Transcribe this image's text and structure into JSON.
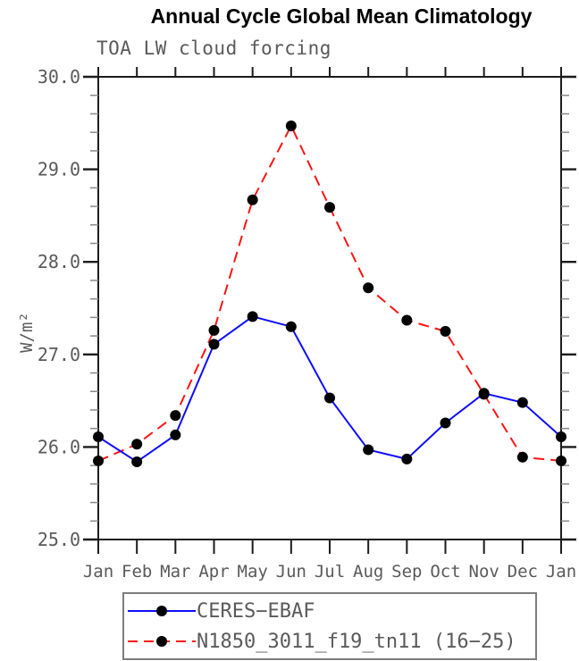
{
  "chart_data": {
    "type": "line",
    "title": "Annual Cycle Global Mean Climatology",
    "subtitle": "TOA LW cloud forcing",
    "ylabel": "W/m²",
    "xlabel": "",
    "categories": [
      "Jan",
      "Feb",
      "Mar",
      "Apr",
      "May",
      "Jun",
      "Jul",
      "Aug",
      "Sep",
      "Oct",
      "Nov",
      "Dec",
      "Jan"
    ],
    "ylim": [
      25.0,
      30.0
    ],
    "ytick_step": 1.0,
    "ytick_minor_step": 0.2,
    "ytick_labels": [
      "30.0",
      "29.0",
      "28.0",
      "27.0",
      "26.0",
      "25.0"
    ],
    "grid": false,
    "legend_position": "bottom",
    "series": [
      {
        "name": "CERES−EBAF",
        "color": "#0d0dff",
        "line_style": "solid",
        "marker": "filled-circle",
        "marker_color": "#000000",
        "values": [
          26.11,
          25.84,
          26.13,
          27.11,
          27.41,
          27.3,
          26.53,
          25.97,
          25.87,
          26.26,
          26.58,
          26.48,
          26.11
        ]
      },
      {
        "name": "N1850_3011_f19_tn11 (16−25)",
        "color": "#ff1414",
        "line_style": "dashed",
        "marker": "filled-circle",
        "marker_color": "#000000",
        "values": [
          25.85,
          26.03,
          26.34,
          27.26,
          28.67,
          29.47,
          28.59,
          27.72,
          27.37,
          27.25,
          26.57,
          25.89,
          25.85
        ]
      }
    ],
    "colors": {
      "axis": "#1c1c1c",
      "tick_major": "#1c1c1c",
      "tick_minor": "#8a8a8a",
      "label_text": "#5a5a5a"
    }
  }
}
